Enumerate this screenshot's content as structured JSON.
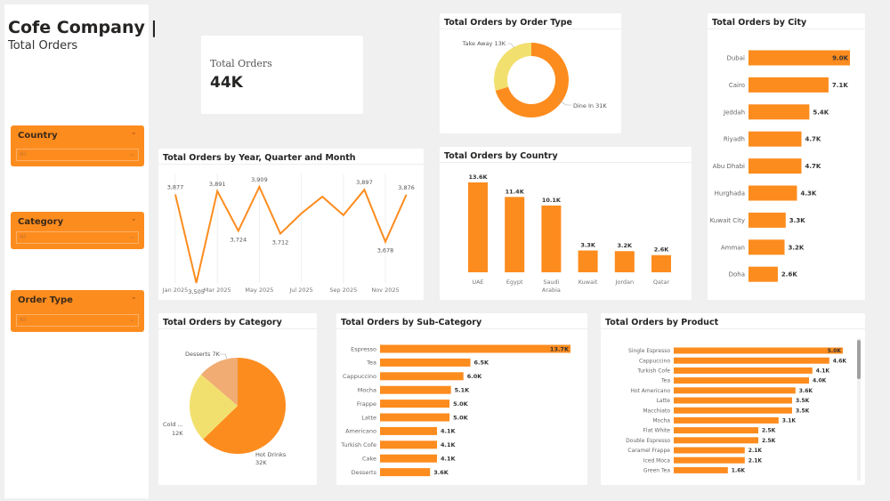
{
  "sidebar": {
    "title": "Cofe Company |",
    "subtitle": "Total Orders",
    "slicers": [
      {
        "label": "Country",
        "value": "All"
      },
      {
        "label": "Category",
        "value": "All"
      },
      {
        "label": "Order Type",
        "value": "All"
      }
    ]
  },
  "kpi": {
    "label": "Total Orders",
    "value": "44K"
  },
  "colors": {
    "orange": "#fd8c1e",
    "yellow": "#f2e06e",
    "peach": "#f0ac72"
  },
  "chart_data": [
    {
      "id": "order-type",
      "type": "donut",
      "title": "Total Orders by Order Type",
      "categories": [
        "Dine In",
        "Take Away"
      ],
      "values": [
        31,
        13
      ],
      "labels": [
        "Dine In 31K",
        "Take Away 13K"
      ]
    },
    {
      "id": "city",
      "type": "bar",
      "orientation": "horizontal",
      "title": "Total Orders by City",
      "categories": [
        "Dubai",
        "Cairo",
        "Jeddah",
        "Riyadh",
        "Abu Dhabi",
        "Hurghada",
        "Kuwait City",
        "Amman",
        "Doha"
      ],
      "values": [
        9.0,
        7.1,
        5.4,
        4.7,
        4.7,
        4.3,
        3.3,
        3.2,
        2.6
      ],
      "labels": [
        "9.0K",
        "7.1K",
        "5.4K",
        "4.7K",
        "4.7K",
        "4.3K",
        "3.3K",
        "3.2K",
        "2.6K"
      ]
    },
    {
      "id": "month",
      "type": "line",
      "title": "Total Orders by Year, Quarter and Month",
      "x": [
        "Jan 2025",
        "Feb 2025",
        "Mar 2025",
        "Apr 2025",
        "May 2025",
        "Jun 2025",
        "Jul 2025",
        "Aug 2025",
        "Sep 2025",
        "Oct 2025",
        "Nov 2025",
        "Dec 2025"
      ],
      "values": [
        3877,
        3505,
        3891,
        3724,
        3909,
        3712,
        3797,
        3868,
        3790,
        3897,
        3678,
        3876
      ],
      "point_labels": [
        "3,877",
        "3,505",
        "3,891",
        "3,724",
        "3,909",
        "3,712",
        "",
        "",
        "",
        "3,897",
        "3,678",
        "3,876"
      ],
      "xticks": [
        "Jan 2025",
        "Mar 2025",
        "May 2025",
        "Jul 2025",
        "Sep 2025",
        "Nov 2025"
      ],
      "grid": true
    },
    {
      "id": "country",
      "type": "bar",
      "orientation": "vertical",
      "title": "Total Orders by Country",
      "categories": [
        "UAE",
        "Egypt",
        "Saudi Arabia",
        "Kuwait",
        "Jordan",
        "Qatar"
      ],
      "values": [
        13.6,
        11.4,
        10.1,
        3.3,
        3.2,
        2.6
      ],
      "labels": [
        "13.6K",
        "11.4K",
        "10.1K",
        "3.3K",
        "3.2K",
        "2.6K"
      ]
    },
    {
      "id": "category",
      "type": "pie",
      "title": "Total Orders by Category",
      "categories": [
        "Hot Drinks",
        "Cold ...",
        "Desserts"
      ],
      "values": [
        32,
        12,
        7
      ],
      "labels": [
        "32K",
        "12K",
        "7K"
      ]
    },
    {
      "id": "sub-category",
      "type": "bar",
      "orientation": "horizontal",
      "title": "Total Orders by Sub-Category",
      "categories": [
        "Espresso",
        "Tea",
        "Cappuccino",
        "Mocha",
        "Frappe",
        "Latte",
        "Americano",
        "Turkish Cofe",
        "Cake",
        "Desserts"
      ],
      "values": [
        13.7,
        6.5,
        6.0,
        5.1,
        5.0,
        5.0,
        4.1,
        4.1,
        4.1,
        3.6
      ],
      "labels": [
        "13.7K",
        "6.5K",
        "6.0K",
        "5.1K",
        "5.0K",
        "5.0K",
        "4.1K",
        "4.1K",
        "4.1K",
        "3.6K"
      ]
    },
    {
      "id": "product",
      "type": "bar",
      "orientation": "horizontal",
      "title": "Total Orders by Product",
      "categories": [
        "Single Espresso",
        "Cappuccino",
        "Turkish Cofe",
        "Tea",
        "Hot Americano",
        "Latte",
        "Macchiato",
        "Mocha",
        "Flat White",
        "Double Espresso",
        "Caramel Frappe",
        "Iced Moca",
        "Green Tea"
      ],
      "values": [
        5.0,
        4.6,
        4.1,
        4.0,
        3.6,
        3.5,
        3.5,
        3.1,
        2.5,
        2.5,
        2.1,
        2.1,
        1.6
      ],
      "labels": [
        "5.0K",
        "4.6K",
        "4.1K",
        "4.0K",
        "3.6K",
        "3.5K",
        "3.5K",
        "3.1K",
        "2.5K",
        "2.5K",
        "2.1K",
        "2.1K",
        "1.6K"
      ]
    }
  ]
}
